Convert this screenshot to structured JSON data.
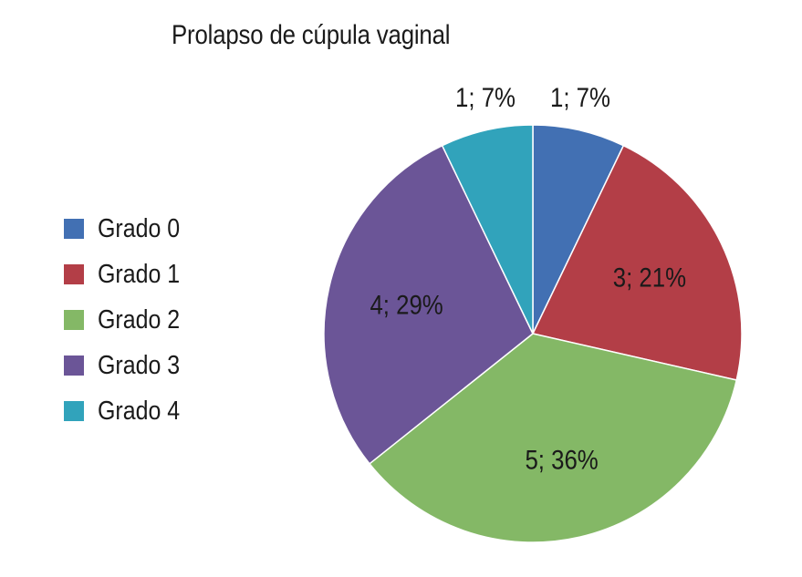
{
  "chart_data": {
    "type": "pie",
    "title": "Prolapso de cúpula vaginal",
    "categories": [
      "Grado 0",
      "Grado 1",
      "Grado 2",
      "Grado 3",
      "Grado 4"
    ],
    "values": [
      1,
      3,
      5,
      4,
      1
    ],
    "percentages": [
      7,
      21,
      36,
      29,
      7
    ],
    "data_labels": [
      "1; 7%",
      "3; 21%",
      "5; 36%",
      "4; 29%",
      "1; 7%"
    ],
    "colors": [
      "#4270b3",
      "#b33e47",
      "#84b866",
      "#6b5597",
      "#31a3bb"
    ],
    "legend_placement": "left",
    "start_angle": "12 o'clock",
    "direction": "clockwise"
  }
}
